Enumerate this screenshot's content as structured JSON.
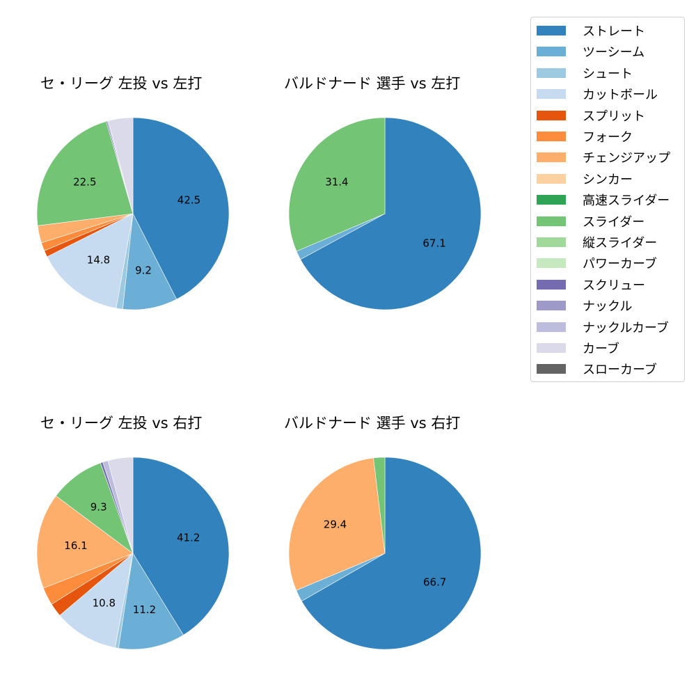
{
  "legend": {
    "items": [
      {
        "label": "ストレート",
        "color": "#3182bd"
      },
      {
        "label": "ツーシーム",
        "color": "#6baed6"
      },
      {
        "label": "シュート",
        "color": "#9ecae1"
      },
      {
        "label": "カットボール",
        "color": "#c6dbef"
      },
      {
        "label": "スプリット",
        "color": "#e6550d"
      },
      {
        "label": "フォーク",
        "color": "#fd8d3c"
      },
      {
        "label": "チェンジアップ",
        "color": "#fdae6b"
      },
      {
        "label": "シンカー",
        "color": "#fdd0a2"
      },
      {
        "label": "高速スライダー",
        "color": "#31a354"
      },
      {
        "label": "スライダー",
        "color": "#74c476"
      },
      {
        "label": "縦スライダー",
        "color": "#a1d99b"
      },
      {
        "label": "パワーカーブ",
        "color": "#c7e9c0"
      },
      {
        "label": "スクリュー",
        "color": "#756bb1"
      },
      {
        "label": "ナックル",
        "color": "#9e9ac8"
      },
      {
        "label": "ナックルカーブ",
        "color": "#bcbddc"
      },
      {
        "label": "カーブ",
        "color": "#dadaeb"
      },
      {
        "label": "スローカーブ",
        "color": "#636363"
      }
    ]
  },
  "chart_data": [
    {
      "type": "pie",
      "title": "セ・リーグ 左投 vs 左打",
      "start_angle": 90,
      "direction": "clockwise",
      "slices": [
        {
          "name": "ストレート",
          "value": 42.5,
          "label": "42.5"
        },
        {
          "name": "ツーシーム",
          "value": 9.2,
          "label": "9.2"
        },
        {
          "name": "シュート",
          "value": 1.1,
          "label": ""
        },
        {
          "name": "カットボール",
          "value": 14.8,
          "label": "14.8"
        },
        {
          "name": "スプリット",
          "value": 1.1,
          "label": ""
        },
        {
          "name": "フォーク",
          "value": 1.4,
          "label": ""
        },
        {
          "name": "チェンジアップ",
          "value": 2.9,
          "label": ""
        },
        {
          "name": "スライダー",
          "value": 22.5,
          "label": "22.5"
        },
        {
          "name": "スクリュー",
          "value": 0.2,
          "label": ""
        },
        {
          "name": "ナックルカーブ",
          "value": 0.2,
          "label": ""
        },
        {
          "name": "カーブ",
          "value": 4.1,
          "label": ""
        }
      ]
    },
    {
      "type": "pie",
      "title": "バルドナード 選手 vs 左打",
      "start_angle": 90,
      "direction": "clockwise",
      "slices": [
        {
          "name": "ストレート",
          "value": 67.1,
          "label": "67.1"
        },
        {
          "name": "ツーシーム",
          "value": 1.5,
          "label": ""
        },
        {
          "name": "スライダー",
          "value": 31.4,
          "label": "31.4"
        }
      ]
    },
    {
      "type": "pie",
      "title": "セ・リーグ 左投 vs 右打",
      "start_angle": 90,
      "direction": "clockwise",
      "slices": [
        {
          "name": "ストレート",
          "value": 41.2,
          "label": "41.2"
        },
        {
          "name": "ツーシーム",
          "value": 11.2,
          "label": "11.2"
        },
        {
          "name": "シュート",
          "value": 0.6,
          "label": ""
        },
        {
          "name": "カットボール",
          "value": 10.8,
          "label": "10.8"
        },
        {
          "name": "スプリット",
          "value": 2.3,
          "label": ""
        },
        {
          "name": "フォーク",
          "value": 3.0,
          "label": ""
        },
        {
          "name": "チェンジアップ",
          "value": 16.1,
          "label": "16.1"
        },
        {
          "name": "スライダー",
          "value": 9.3,
          "label": "9.3"
        },
        {
          "name": "スクリュー",
          "value": 0.4,
          "label": ""
        },
        {
          "name": "ナックルカーブ",
          "value": 0.9,
          "label": ""
        },
        {
          "name": "カーブ",
          "value": 4.2,
          "label": ""
        }
      ]
    },
    {
      "type": "pie",
      "title": "バルドナード 選手 vs 右打",
      "start_angle": 90,
      "direction": "clockwise",
      "slices": [
        {
          "name": "ストレート",
          "value": 66.7,
          "label": "66.7"
        },
        {
          "name": "ツーシーム",
          "value": 2.0,
          "label": ""
        },
        {
          "name": "チェンジアップ",
          "value": 29.4,
          "label": "29.4"
        },
        {
          "name": "スライダー",
          "value": 1.9,
          "label": ""
        }
      ]
    }
  ]
}
